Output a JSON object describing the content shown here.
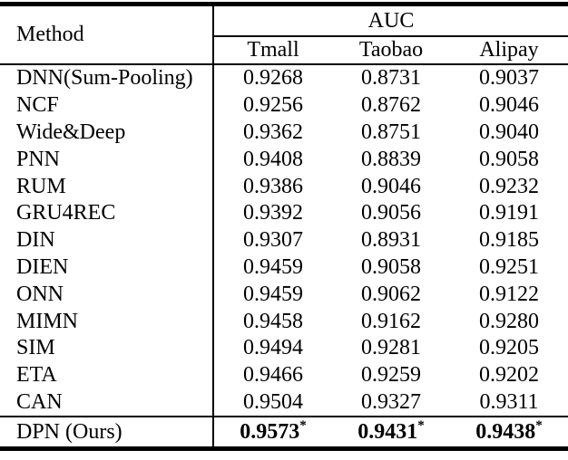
{
  "table": {
    "header": {
      "method_label": "Method",
      "group_label": "AUC",
      "columns": [
        "Tmall",
        "Taobao",
        "Alipay"
      ]
    },
    "rows": [
      {
        "method": "DNN(Sum-Pooling)",
        "values": [
          "0.9268",
          "0.8731",
          "0.9037"
        ]
      },
      {
        "method": "NCF",
        "values": [
          "0.9256",
          "0.8762",
          "0.9046"
        ]
      },
      {
        "method": "Wide&Deep",
        "values": [
          "0.9362",
          "0.8751",
          "0.9040"
        ]
      },
      {
        "method": "PNN",
        "values": [
          "0.9408",
          "0.8839",
          "0.9058"
        ]
      },
      {
        "method": "RUM",
        "values": [
          "0.9386",
          "0.9046",
          "0.9232"
        ]
      },
      {
        "method": "GRU4REC",
        "values": [
          "0.9392",
          "0.9056",
          "0.9191"
        ]
      },
      {
        "method": "DIN",
        "values": [
          "0.9307",
          "0.8931",
          "0.9185"
        ]
      },
      {
        "method": "DIEN",
        "values": [
          "0.9459",
          "0.9058",
          "0.9251"
        ]
      },
      {
        "method": "ONN",
        "values": [
          "0.9459",
          "0.9062",
          "0.9122"
        ]
      },
      {
        "method": "MIMN",
        "values": [
          "0.9458",
          "0.9162",
          "0.9280"
        ]
      },
      {
        "method": "SIM",
        "values": [
          "0.9494",
          "0.9281",
          "0.9205"
        ]
      },
      {
        "method": "ETA",
        "values": [
          "0.9466",
          "0.9259",
          "0.9202"
        ]
      },
      {
        "method": "CAN",
        "values": [
          "0.9504",
          "0.9327",
          "0.9311"
        ]
      }
    ],
    "highlight_row": {
      "method": "DPN (Ours)",
      "values": [
        "0.9573",
        "0.9431",
        "0.9438"
      ],
      "marker": "*"
    }
  }
}
